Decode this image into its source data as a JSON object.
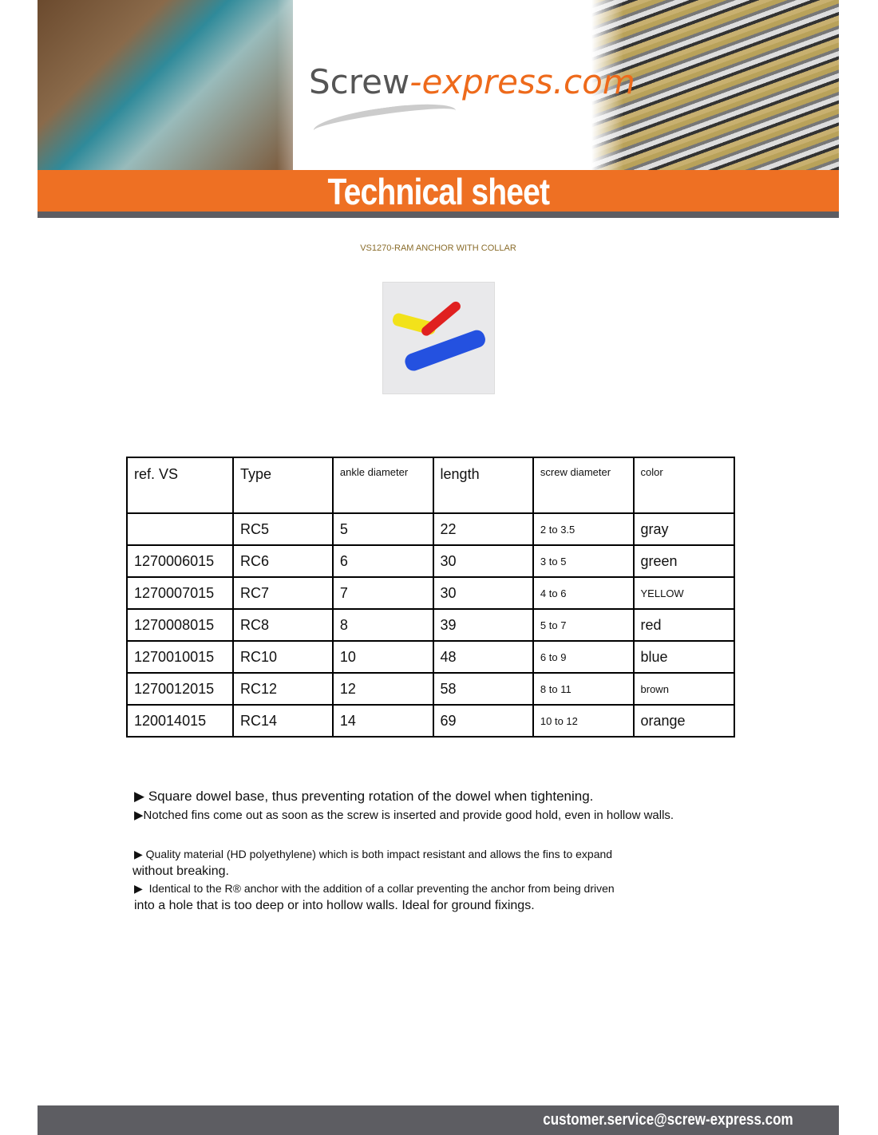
{
  "header": {
    "logo_main": "Screw",
    "logo_accent": "-express.com",
    "banner_title": "Technical sheet"
  },
  "product": {
    "title": "VS1270-RAM ANCHOR WITH COLLAR",
    "image": "colored-plastic-anchors"
  },
  "table": {
    "headers": [
      "ref. VS",
      "Type",
      "ankle diameter",
      "length",
      "screw diameter",
      "color"
    ],
    "rows": [
      [
        "",
        "RC5",
        "5",
        "22",
        "2 to 3.5",
        "gray"
      ],
      [
        "1270006015",
        "RC6",
        "6",
        "30",
        "3 to 5",
        "green"
      ],
      [
        "1270007015",
        "RC7",
        "7",
        "30",
        "4 to 6",
        "YELLOW"
      ],
      [
        "1270008015",
        "RC8",
        "8",
        "39",
        "5 to 7",
        "red"
      ],
      [
        "1270010015",
        "RC10",
        "10",
        "48",
        "6 to 9",
        "blue"
      ],
      [
        "1270012015",
        "RC12",
        "12",
        "58",
        "8 to 11",
        "brown"
      ],
      [
        "120014015",
        "RC14",
        "14",
        "69",
        "10 to 12",
        "orange"
      ]
    ]
  },
  "bullets": [
    "Square dowel base, thus preventing rotation of the dowel when tightening.",
    "Notched fins come out as soon as the screw is inserted and provide good hold, even in hollow walls.",
    "Quality material (HD polyethylene) which is both impact resistant and allows the fins to expand",
    "without breaking.",
    "Identical to the R® anchor with the addition of a collar preventing the anchor from being driven",
    "into a hole that is too deep or into hollow walls. Ideal for ground fixings."
  ],
  "bullet_glyph": "▶",
  "footer": {
    "email": "customer.service@screw-express.com"
  },
  "colors": {
    "accent": "#ee7023",
    "dark": "#5d5d62",
    "subtitle": "#8a6d2c"
  }
}
